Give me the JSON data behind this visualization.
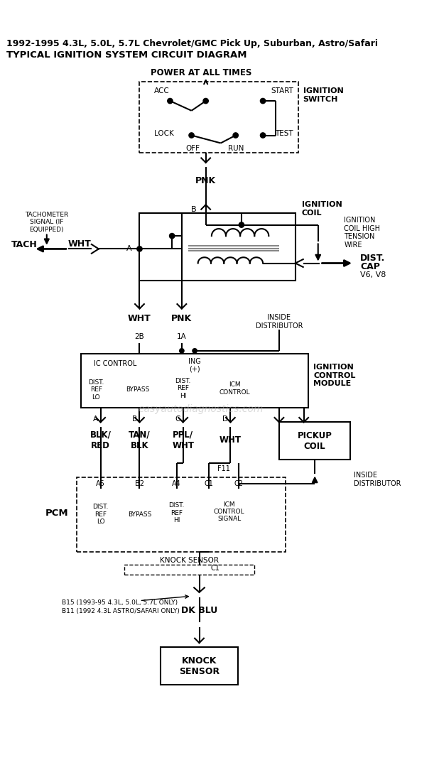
{
  "title_line1": "1992-1995 4.3L, 5.0L, 5.7L Chevrolet/GMC Pick Up, Suburban, Astro/Safari",
  "title_line2": "TYPICAL IGNITION SYSTEM CIRCUIT DIAGRAM",
  "bg_color": "#ffffff",
  "watermark": "easyautodiagnostics.com"
}
